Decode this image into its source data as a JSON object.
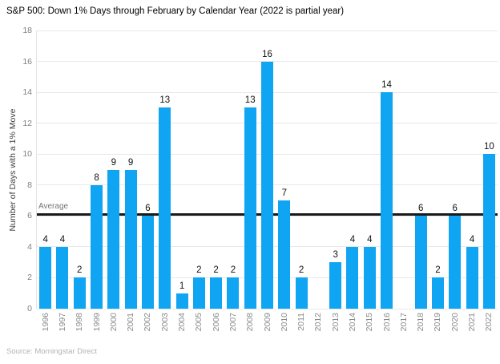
{
  "title": "S&P 500: Down 1% Days through February by Calendar Year (2022 is partial year)",
  "source": "Source: Morningstar Direct",
  "chart_data": {
    "type": "bar",
    "title": "S&P 500: Down 1% Days through February by Calendar Year (2022 is partial year)",
    "xlabel": "",
    "ylabel": "Number of Days with a 1% Move",
    "categories": [
      "1996",
      "1997",
      "1998",
      "1999",
      "2000",
      "2001",
      "2002",
      "2003",
      "2004",
      "2005",
      "2006",
      "2007",
      "2008",
      "2009",
      "2010",
      "2011",
      "2012",
      "2013",
      "2014",
      "2015",
      "2016",
      "2017",
      "2018",
      "2019",
      "2020",
      "2021",
      "2022"
    ],
    "values": [
      4,
      4,
      2,
      8,
      9,
      9,
      6,
      13,
      1,
      2,
      2,
      2,
      13,
      16,
      7,
      2,
      0,
      3,
      4,
      4,
      14,
      0,
      6,
      2,
      6,
      4,
      10
    ],
    "ylim": [
      0,
      18
    ],
    "ytick_step": 2,
    "grid": true,
    "legend_position": "none",
    "value_labels_shown": true,
    "average_line": {
      "label": "Average",
      "value": 6.1
    },
    "colors": {
      "bar": "#0fa5f3",
      "average_line": "#1a1a1a",
      "gridline": "#e8e8e8",
      "value_label": "#111111",
      "tick_label": "#8a8a8a",
      "source_text": "#b3b3b3"
    }
  }
}
